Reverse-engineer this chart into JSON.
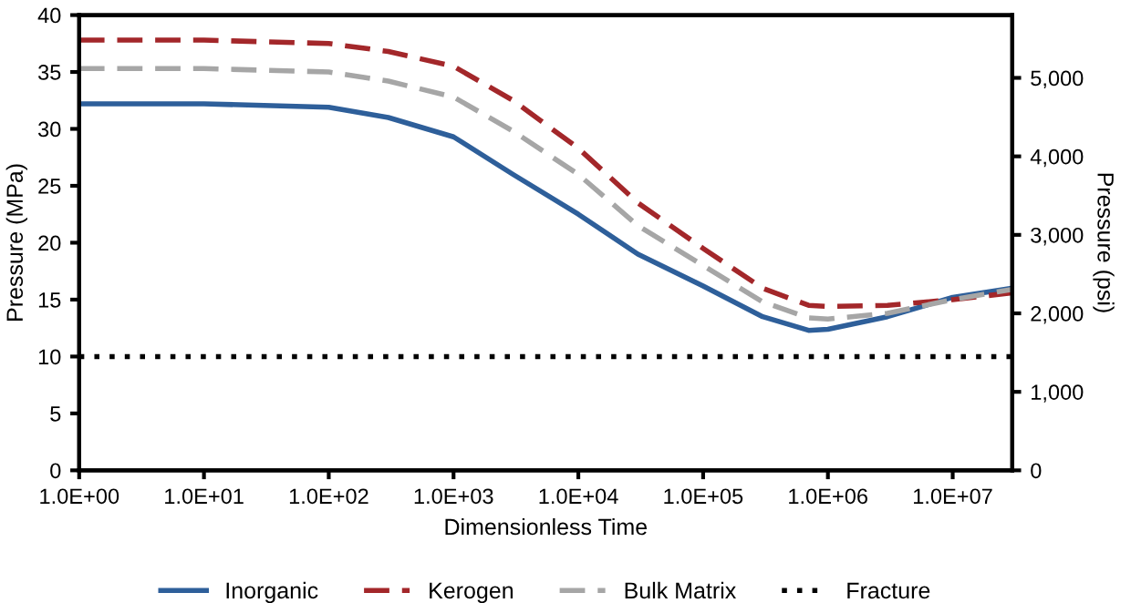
{
  "chart_data": {
    "type": "line",
    "xlabel": "Dimensionless Time",
    "ylabel": "Pressure (MPa)",
    "y2label": "Pressure (psi)",
    "log": "x",
    "xlim": [
      1,
      30000000
    ],
    "ylim": [
      0,
      40
    ],
    "y2lim": [
      0,
      5800
    ],
    "xticks": [
      {
        "value": 1,
        "label": "1.0E+00"
      },
      {
        "value": 10,
        "label": "1.0E+01"
      },
      {
        "value": 100,
        "label": "1.0E+02"
      },
      {
        "value": 1000,
        "label": "1.0E+03"
      },
      {
        "value": 10000,
        "label": "1.0E+04"
      },
      {
        "value": 100000,
        "label": "1.0E+05"
      },
      {
        "value": 1000000,
        "label": "1.0E+06"
      },
      {
        "value": 10000000,
        "label": "1.0E+07"
      }
    ],
    "yticks": [
      0,
      5,
      10,
      15,
      20,
      25,
      30,
      35,
      40
    ],
    "y2ticks": [
      0,
      {
        "value": 1000,
        "label": "1,000"
      },
      {
        "value": 2000,
        "label": "2,000"
      },
      {
        "value": 3000,
        "label": "3,000"
      },
      {
        "value": 4000,
        "label": "4,000"
      },
      {
        "value": 5000,
        "label": "5,000"
      }
    ],
    "x": [
      1,
      10,
      100,
      300,
      1000,
      3000,
      10000,
      30000,
      100000,
      300000,
      700000,
      1000000,
      3000000,
      10000000,
      30000000
    ],
    "grid": false,
    "legend": "bottom",
    "marker": "none",
    "series": [
      {
        "name": "Inorganic",
        "color": "#2e5f9a",
        "line_style": "solid",
        "values": [
          32.2,
          32.2,
          31.9,
          31,
          29.3,
          26,
          22.5,
          19,
          16.2,
          13.5,
          12.3,
          12.4,
          13.5,
          15.2,
          16.0
        ]
      },
      {
        "name": "Kerogen",
        "color": "#a3272a",
        "line_style": "dashed",
        "values": [
          37.8,
          37.8,
          37.5,
          36.8,
          35.5,
          32.5,
          28.3,
          23.5,
          19.5,
          16,
          14.5,
          14.4,
          14.5,
          15,
          15.6
        ]
      },
      {
        "name": "Bulk Matrix",
        "color": "#a6a6a6",
        "line_style": "dashed",
        "values": [
          35.3,
          35.3,
          35,
          34.2,
          32.8,
          29.8,
          26,
          21.5,
          18,
          14.8,
          13.4,
          13.3,
          13.8,
          15,
          15.9
        ]
      },
      {
        "name": "Fracture",
        "color": "#000000",
        "line_style": "dotted",
        "values": [
          10,
          10,
          10,
          10,
          10,
          10,
          10,
          10,
          10,
          10,
          10,
          10,
          10,
          10,
          10
        ]
      }
    ]
  }
}
